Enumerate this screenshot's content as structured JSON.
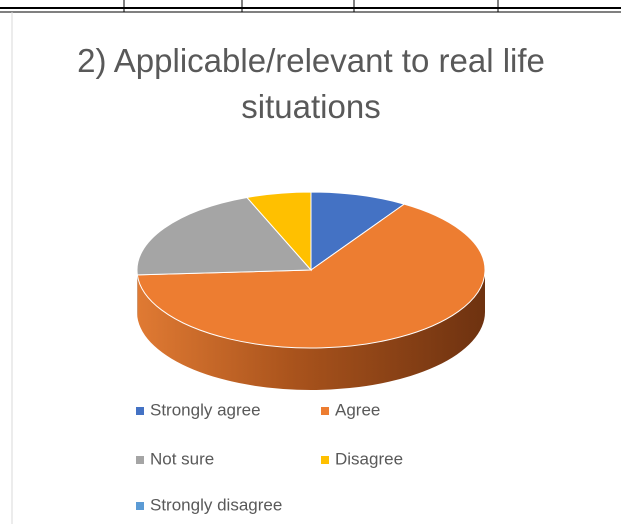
{
  "chart_data": {
    "type": "pie",
    "title": "2) Applicable/relevant to real life situations",
    "categories": [
      "Strongly agree",
      "Agree",
      "Not sure",
      "Disagree",
      "Strongly disagree"
    ],
    "values": [
      9,
      65,
      20,
      6,
      0
    ],
    "colors": [
      "#4472c4",
      "#ed7d31",
      "#a5a5a5",
      "#ffc000",
      "#5b9bd5"
    ],
    "three_d": true
  }
}
